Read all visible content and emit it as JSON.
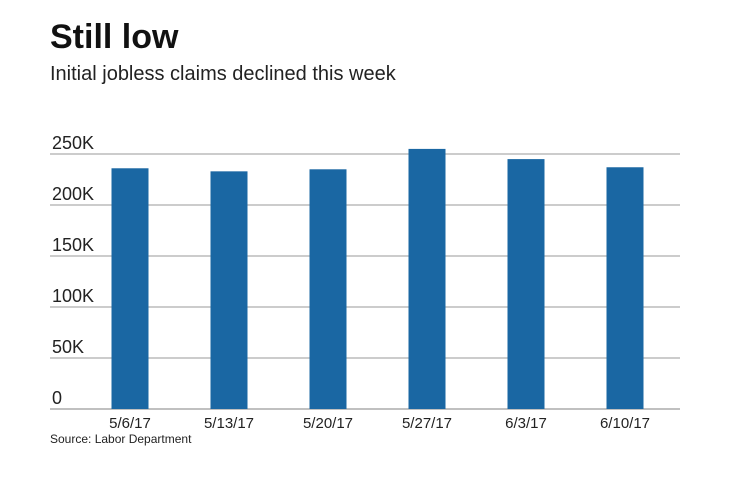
{
  "title": "Still low",
  "subtitle": "Initial jobless claims declined this week",
  "source": "Source: Labor Department",
  "colors": {
    "bar": "#1a67a3",
    "grid": "#9a9a9a",
    "text": "#222222"
  },
  "chart_data": {
    "type": "bar",
    "categories": [
      "5/6/17",
      "5/13/17",
      "5/20/17",
      "5/27/17",
      "6/3/17",
      "6/10/17"
    ],
    "values": [
      236000,
      233000,
      235000,
      255000,
      245000,
      237000
    ],
    "ylim": [
      0,
      250000
    ],
    "yticks": [
      0,
      50000,
      100000,
      150000,
      200000,
      250000
    ],
    "ytick_labels": [
      "0",
      "50K",
      "100K",
      "150K",
      "200K",
      "250K"
    ],
    "grid": true,
    "legend": false,
    "xlabel": "",
    "ylabel": ""
  }
}
